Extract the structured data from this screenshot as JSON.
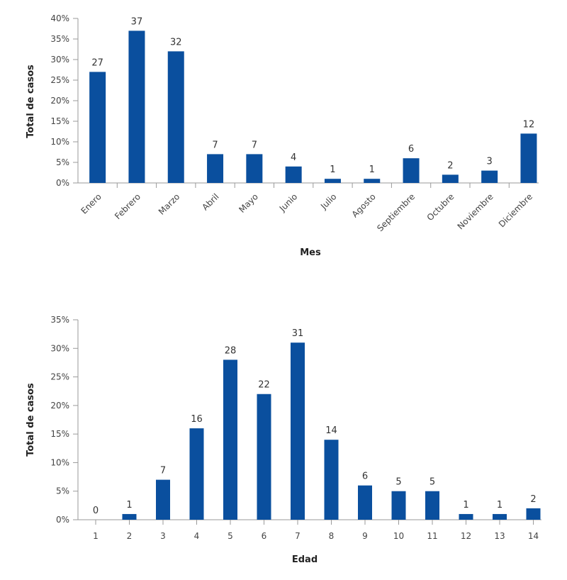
{
  "chart_data": [
    {
      "type": "bar",
      "xlabel": "Mes",
      "ylabel": "Total de casos",
      "ylim": [
        0,
        40
      ],
      "yticks": [
        "0%",
        "5%",
        "10%",
        "15%",
        "20%",
        "25%",
        "30%",
        "35%",
        "40%"
      ],
      "categories": [
        "Enero",
        "Febrero",
        "Marzo",
        "Abril",
        "Mayo",
        "Junio",
        "Julio",
        "Agosto",
        "Septiembre",
        "Octubre",
        "Noviembre",
        "Diciembre"
      ],
      "values": [
        27,
        37,
        32,
        7,
        7,
        4,
        1,
        1,
        6,
        2,
        3,
        12
      ],
      "data_labels": [
        "27",
        "37",
        "32",
        "7",
        "7",
        "4",
        "1",
        "1",
        "6",
        "2",
        "3",
        "12"
      ],
      "color": "#0a4f9e",
      "grid": false
    },
    {
      "type": "bar",
      "xlabel": "Edad",
      "ylabel": "Total de casos",
      "ylim": [
        0,
        35
      ],
      "yticks": [
        "0%",
        "5%",
        "10%",
        "15%",
        "20%",
        "25%",
        "30%",
        "35%"
      ],
      "categories": [
        "1",
        "2",
        "3",
        "4",
        "5",
        "6",
        "7",
        "8",
        "9",
        "10",
        "11",
        "12",
        "13",
        "14"
      ],
      "values": [
        0,
        1,
        7,
        16,
        28,
        22,
        31,
        14,
        6,
        5,
        5,
        1,
        1,
        2
      ],
      "data_labels": [
        "0",
        "1",
        "7",
        "16",
        "28",
        "22",
        "31",
        "14",
        "6",
        "5",
        "5",
        "1",
        "1",
        "2"
      ],
      "color": "#0a4f9e",
      "grid": false
    }
  ]
}
